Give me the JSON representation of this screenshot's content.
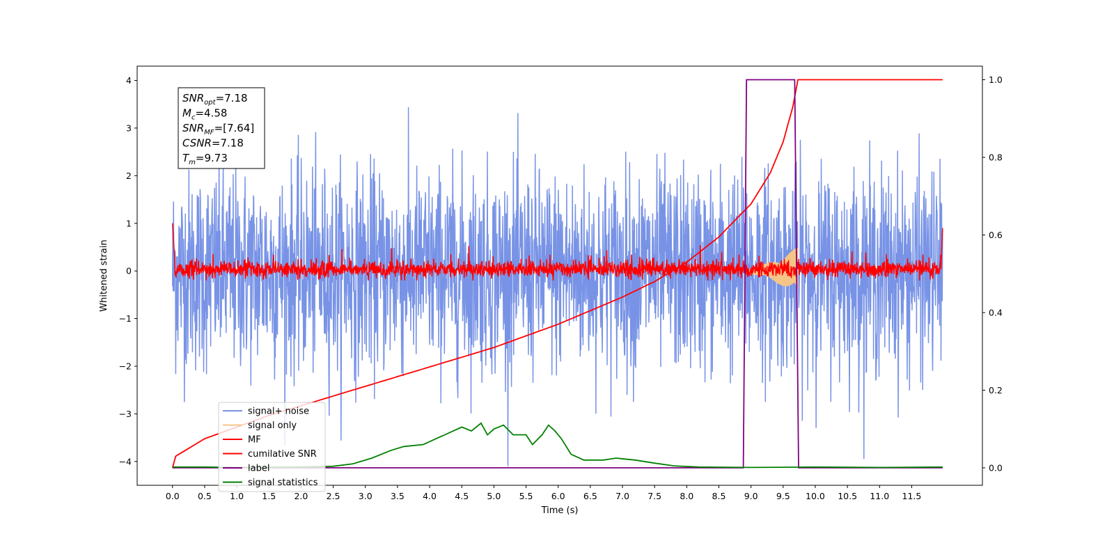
{
  "chart_data": {
    "type": "line",
    "xlabel": "Time (s)",
    "ylabel": "Whitened strain",
    "xlim": [
      -0.55,
      12.6
    ],
    "ylim": [
      -4.5,
      4.3
    ],
    "y2lim": [
      -0.045,
      1.035
    ],
    "x_ticks": [
      0.0,
      0.5,
      1.0,
      1.5,
      2.0,
      2.5,
      3.0,
      3.5,
      4.0,
      4.5,
      5.0,
      5.5,
      6.0,
      6.5,
      7.0,
      7.5,
      8.0,
      8.5,
      9.0,
      9.5,
      10.0,
      10.5,
      11.0,
      11.5
    ],
    "x_tick_labels": [
      "0.0",
      "0.5",
      "1.0",
      "1.5",
      "2.0",
      "2.5",
      "3.0",
      "3.5",
      "4.0",
      "4.5",
      "5.0",
      "5.5",
      "6.0",
      "6.5",
      "7.0",
      "7.5",
      "8.0",
      "8.5",
      "9.0",
      "9.5",
      "10.0",
      "10.5",
      "11.0",
      "11.5"
    ],
    "y_ticks": [
      4,
      3,
      2,
      1,
      0,
      -1,
      -2,
      -3,
      -4
    ],
    "y_tick_labels": [
      "4",
      "3",
      "2",
      "1",
      "0",
      "−1",
      "−2",
      "−3",
      "−4"
    ],
    "y2_ticks": [
      1.0,
      0.8,
      0.6,
      0.4,
      0.2,
      0.0
    ],
    "y2_tick_labels": [
      "1.0",
      "0.8",
      "0.6",
      "0.4",
      "0.2",
      "0.0"
    ],
    "grid": false,
    "legend_placement": "lower-left",
    "annotation": {
      "lines": [
        {
          "base": "SNR",
          "sub": "opt",
          "rest": "=7.18"
        },
        {
          "base": "M",
          "sub": "c",
          "rest": "=4.58"
        },
        {
          "base": "SNR",
          "sub": "MF",
          "rest": "=[7.64]"
        },
        {
          "base": "CSNR",
          "sub": "",
          "rest": "=7.18"
        },
        {
          "base": "T",
          "sub": "m",
          "rest": "=9.73"
        }
      ]
    },
    "series": [
      {
        "name": "signal+ noise",
        "color": "#7893e6",
        "axis": "left",
        "t_start": 0.0,
        "t_end": 11.98,
        "approx_range": [
          -4.1,
          3.9
        ],
        "samples": 2400,
        "note_value": "noise"
      },
      {
        "name": "signal only",
        "color": "#f5c587",
        "axis": "left",
        "t_start": 8.9,
        "t_end": 9.73,
        "envelope_start": 0.05,
        "envelope_end": 0.5
      },
      {
        "name": "MF",
        "color": "#ff0000",
        "axis": "left",
        "t_start": 0.0,
        "t_end": 11.98,
        "start_value": 1.0,
        "end_value": 0.85,
        "approx_range": [
          -0.2,
          0.5
        ]
      },
      {
        "name": "cumilative SNR",
        "color": "#ff0000",
        "axis": "right",
        "points": [
          [
            0.0,
            0.0
          ],
          [
            0.05,
            0.03
          ],
          [
            0.5,
            0.075
          ],
          [
            1.0,
            0.105
          ],
          [
            1.5,
            0.135
          ],
          [
            2.0,
            0.16
          ],
          [
            2.5,
            0.185
          ],
          [
            3.0,
            0.21
          ],
          [
            3.5,
            0.235
          ],
          [
            4.0,
            0.26
          ],
          [
            4.5,
            0.285
          ],
          [
            5.0,
            0.31
          ],
          [
            5.5,
            0.34
          ],
          [
            6.0,
            0.37
          ],
          [
            6.5,
            0.405
          ],
          [
            7.0,
            0.44
          ],
          [
            7.5,
            0.48
          ],
          [
            8.0,
            0.53
          ],
          [
            8.5,
            0.595
          ],
          [
            9.0,
            0.68
          ],
          [
            9.3,
            0.76
          ],
          [
            9.5,
            0.84
          ],
          [
            9.65,
            0.93
          ],
          [
            9.73,
            1.0
          ],
          [
            11.98,
            1.0
          ]
        ]
      },
      {
        "name": "label",
        "color": "#800080",
        "axis": "right",
        "points": [
          [
            0.0,
            0.0
          ],
          [
            8.88,
            0.0
          ],
          [
            8.93,
            1.0
          ],
          [
            9.68,
            1.0
          ],
          [
            9.74,
            0.0
          ],
          [
            11.98,
            0.0
          ]
        ]
      },
      {
        "name": "signal statistics",
        "color": "#008000",
        "axis": "right",
        "points": [
          [
            0.0,
            0.002
          ],
          [
            0.5,
            0.002
          ],
          [
            1.0,
            0.001
          ],
          [
            2.0,
            0.002
          ],
          [
            2.5,
            0.004
          ],
          [
            2.8,
            0.01
          ],
          [
            3.1,
            0.025
          ],
          [
            3.4,
            0.045
          ],
          [
            3.6,
            0.055
          ],
          [
            3.9,
            0.06
          ],
          [
            4.1,
            0.075
          ],
          [
            4.3,
            0.09
          ],
          [
            4.5,
            0.105
          ],
          [
            4.65,
            0.095
          ],
          [
            4.8,
            0.115
          ],
          [
            4.9,
            0.085
          ],
          [
            5.0,
            0.1
          ],
          [
            5.15,
            0.11
          ],
          [
            5.3,
            0.085
          ],
          [
            5.5,
            0.085
          ],
          [
            5.6,
            0.06
          ],
          [
            5.75,
            0.085
          ],
          [
            5.85,
            0.11
          ],
          [
            5.95,
            0.095
          ],
          [
            6.05,
            0.075
          ],
          [
            6.2,
            0.035
          ],
          [
            6.4,
            0.02
          ],
          [
            6.7,
            0.02
          ],
          [
            6.9,
            0.025
          ],
          [
            7.2,
            0.02
          ],
          [
            7.5,
            0.012
          ],
          [
            7.8,
            0.005
          ],
          [
            8.2,
            0.002
          ],
          [
            9.0,
            0.001
          ],
          [
            10.0,
            0.002
          ],
          [
            11.0,
            0.001
          ],
          [
            11.98,
            0.002
          ]
        ]
      }
    ]
  }
}
